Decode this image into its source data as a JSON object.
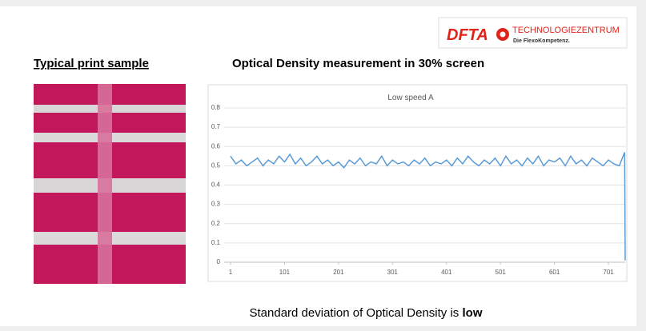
{
  "logo": {
    "brand": "DFTA",
    "name": "TECHNOLOGIEZENTRUM",
    "tagline": "Die FlexoKompetenz."
  },
  "left_heading": "Typical print sample",
  "right_heading": "Optical Density measurement in 30% screen",
  "caption": {
    "text": "Standard deviation of Optical Density is ",
    "emphasis": "low"
  },
  "chart_data": {
    "type": "line",
    "title": "Low speed  A",
    "x": [
      1,
      11,
      21,
      31,
      41,
      51,
      61,
      71,
      81,
      91,
      101,
      111,
      121,
      131,
      141,
      151,
      161,
      171,
      181,
      191,
      201,
      211,
      221,
      231,
      241,
      251,
      261,
      271,
      281,
      291,
      301,
      311,
      321,
      331,
      341,
      351,
      361,
      371,
      381,
      391,
      401,
      411,
      421,
      431,
      441,
      451,
      461,
      471,
      481,
      491,
      501,
      511,
      521,
      531,
      541,
      551,
      561,
      571,
      581,
      591,
      601,
      611,
      621,
      631,
      641,
      651,
      661,
      671,
      681,
      691,
      701,
      711,
      721,
      731,
      732
    ],
    "series": [
      {
        "name": "Low speed  A",
        "color": "#5b9bd5",
        "values": [
          0.55,
          0.51,
          0.53,
          0.5,
          0.52,
          0.54,
          0.5,
          0.53,
          0.51,
          0.55,
          0.52,
          0.56,
          0.51,
          0.54,
          0.5,
          0.52,
          0.55,
          0.51,
          0.53,
          0.5,
          0.52,
          0.49,
          0.53,
          0.51,
          0.54,
          0.5,
          0.52,
          0.51,
          0.55,
          0.5,
          0.53,
          0.51,
          0.52,
          0.5,
          0.53,
          0.51,
          0.54,
          0.5,
          0.52,
          0.51,
          0.53,
          0.5,
          0.54,
          0.51,
          0.55,
          0.52,
          0.5,
          0.53,
          0.51,
          0.54,
          0.5,
          0.55,
          0.51,
          0.53,
          0.5,
          0.54,
          0.51,
          0.55,
          0.5,
          0.53,
          0.52,
          0.54,
          0.5,
          0.55,
          0.51,
          0.53,
          0.5,
          0.54,
          0.52,
          0.5,
          0.53,
          0.51,
          0.5,
          0.57,
          0.01
        ]
      }
    ],
    "xlim": [
      1,
      732
    ],
    "xticks": [
      1,
      101,
      201,
      301,
      401,
      501,
      601,
      701
    ],
    "ylim": [
      0,
      0.8
    ],
    "yticks": [
      0,
      0.1,
      0.2,
      0.3,
      0.4,
      0.5,
      0.6,
      0.7,
      0.8
    ],
    "grid": true
  }
}
